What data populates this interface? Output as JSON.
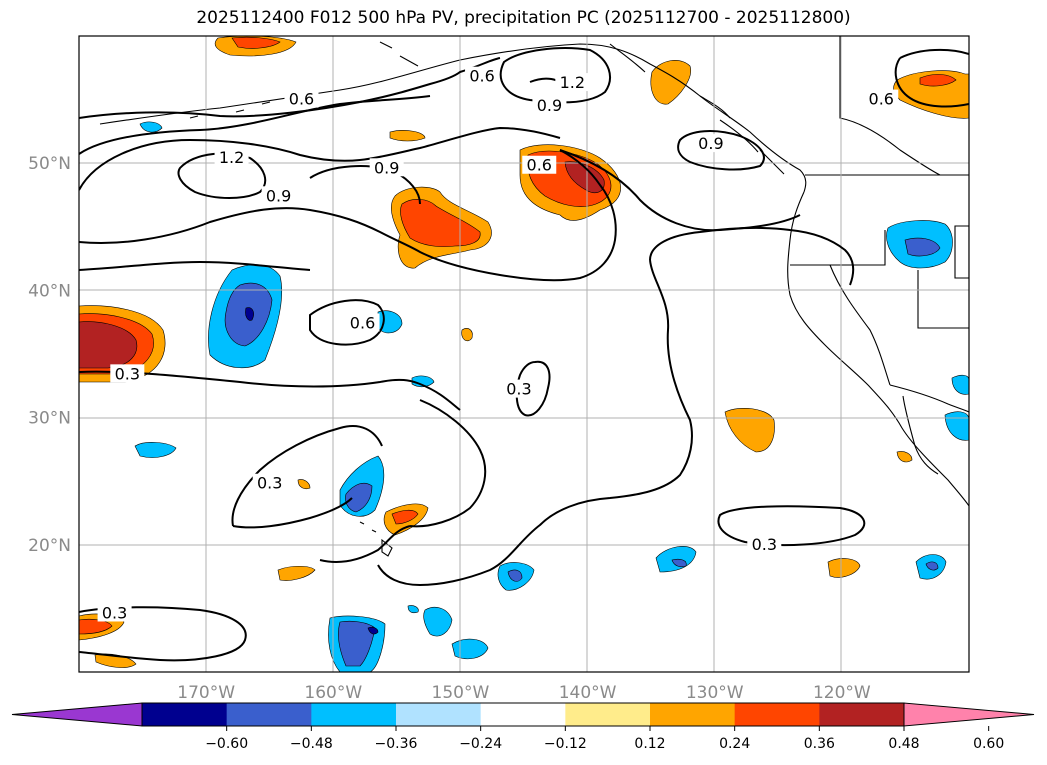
{
  "title": "2025112400 F012 500 hPa PV, precipitation PC (2025112700 - 2025112800)",
  "map": {
    "lon_range": [
      -180,
      -110
    ],
    "lat_range": [
      10,
      60
    ],
    "lon_ticks": [
      {
        "lon": -170,
        "label": "170°W"
      },
      {
        "lon": -160,
        "label": "160°W"
      },
      {
        "lon": -150,
        "label": "150°W"
      },
      {
        "lon": -140,
        "label": "140°W"
      },
      {
        "lon": -130,
        "label": "130°W"
      },
      {
        "lon": -120,
        "label": "120°W"
      }
    ],
    "lat_ticks": [
      {
        "lat": 20,
        "label": "20°N"
      },
      {
        "lat": 30,
        "label": "30°N"
      },
      {
        "lat": 40,
        "label": "40°N"
      },
      {
        "lat": 50,
        "label": "50°N"
      }
    ],
    "gridlines": true
  },
  "contour_labels": [
    {
      "text": "0.6",
      "lon": -162.5,
      "lat": 55.0
    },
    {
      "text": "0.6",
      "lon": -148.3,
      "lat": 56.8
    },
    {
      "text": "1.2",
      "lon": -141.2,
      "lat": 56.3
    },
    {
      "text": "0.9",
      "lon": -143.0,
      "lat": 54.5
    },
    {
      "text": "0.9",
      "lon": -130.3,
      "lat": 51.5
    },
    {
      "text": "1.2",
      "lon": -168.0,
      "lat": 50.4
    },
    {
      "text": "0.9",
      "lon": -164.3,
      "lat": 47.4
    },
    {
      "text": "0.9",
      "lon": -155.8,
      "lat": 49.6
    },
    {
      "text": "0.6",
      "lon": -143.8,
      "lat": 49.8
    },
    {
      "text": "0.6",
      "lon": -116.9,
      "lat": 55.0
    },
    {
      "text": "0.6",
      "lon": -157.7,
      "lat": 37.4
    },
    {
      "text": "0.3",
      "lon": -176.2,
      "lat": 33.4
    },
    {
      "text": "0.3",
      "lon": -145.4,
      "lat": 32.2
    },
    {
      "text": "0.3",
      "lon": -165.0,
      "lat": 24.8
    },
    {
      "text": "0.3",
      "lon": -126.1,
      "lat": 20.0
    },
    {
      "text": "0.3",
      "lon": -177.2,
      "lat": 14.6
    }
  ],
  "colorbar": {
    "colors": [
      "#9a37d1",
      "#00008f",
      "#3a5fcd",
      "#00bfff",
      "#b0e2ff",
      "#ffffff",
      "#ffec8b",
      "#ffa500",
      "#ff4500",
      "#b22222",
      "#ff82ab"
    ],
    "labels": [
      "−0.60",
      "−0.48",
      "−0.36",
      "−0.24",
      "−0.12",
      "0.12",
      "0.24",
      "0.36",
      "0.48",
      "0.60"
    ]
  }
}
